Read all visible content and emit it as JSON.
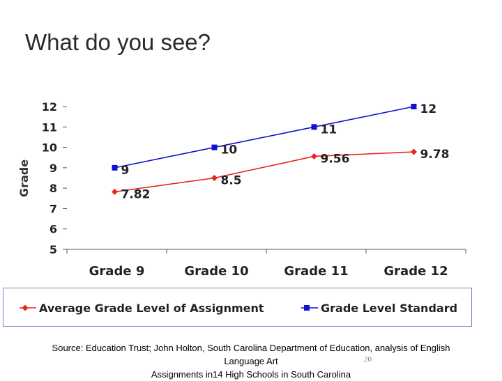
{
  "slide": {
    "title": "What do you see?",
    "source_line1": "Source: Education Trust; John Holton, South Carolina Department of Education, analysis of English",
    "source_line2": "Language Art",
    "source_line3": "Assignments in14 High Schools in South Carolina",
    "slide_number": "20"
  },
  "chart_data": {
    "type": "line",
    "ylabel": "Grade",
    "ylim": [
      5,
      12
    ],
    "yticks": [
      "5",
      "6",
      "7",
      "8",
      "9",
      "10",
      "11",
      "12"
    ],
    "categories": [
      "Grade 9",
      "Grade 10",
      "Grade 11",
      "Grade 12"
    ],
    "series": [
      {
        "name": "Average Grade Level of Assignment",
        "values": [
          7.82,
          8.5,
          9.56,
          9.78
        ],
        "labels": [
          "7.82",
          "8.5",
          "9.56",
          "9.78"
        ],
        "color": "#e8241c",
        "marker": "diamond"
      },
      {
        "name": "Grade Level Standard",
        "values": [
          9,
          10,
          11,
          12
        ],
        "labels": [
          "9",
          "10",
          "11",
          "12"
        ],
        "color": "#1010d0",
        "marker": "square"
      }
    ],
    "legend_position": "bottom",
    "grid": false
  }
}
